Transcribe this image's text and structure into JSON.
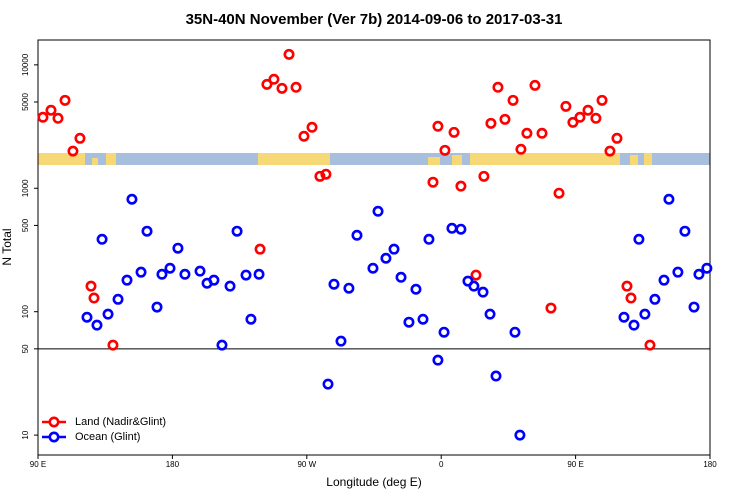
{
  "chart_data": {
    "type": "scatter",
    "title": "35N-40N November (Ver 7b)   2014-09-06 to 2017-03-31",
    "xlabel": "Longitude (deg E)",
    "ylabel": "N Total",
    "xlim": [
      90,
      540
    ],
    "xticks": [
      {
        "value": 90,
        "label": "90 E"
      },
      180,
      {
        "value": 270,
        "label": "90 W"
      },
      {
        "value": 360,
        "label": "0"
      },
      {
        "value": 450,
        "label": "90 E"
      },
      {
        "value": 540,
        "label": "180"
      }
    ],
    "ylim": [
      6.9,
      15900
    ],
    "log_y": true,
    "yticks": [
      10,
      50,
      100,
      500,
      1000,
      5000,
      10000
    ],
    "reference_line": 50,
    "legend": "bottom-left",
    "series": [
      {
        "name": "Land (Nadir&Glint)",
        "color": "#ff0000",
        "x": [
          93.3,
          98.7,
          103.4,
          108.1,
          113.4,
          118.1,
          125.5,
          127.5,
          140.2,
          238.7,
          243.3,
          248.0,
          253.4,
          258.1,
          262.8,
          268.1,
          273.5,
          278.8,
          282.8,
          354.5,
          357.8,
          362.5,
          368.6,
          373.2,
          383.3,
          388.6,
          393.3,
          398.0,
          402.7,
          408.1,
          413.4,
          417.4,
          422.8,
          427.5,
          433.5,
          438.9,
          443.5,
          448.2,
          452.9,
          458.3,
          463.6,
          467.7,
          473.0,
          477.7,
          484.4,
          487.1,
          499.8
        ],
        "values": [
          3760,
          4290,
          3690,
          5160,
          2000,
          2540,
          161,
          129,
          53.6,
          321,
          6950,
          7640,
          6450,
          12160,
          6580,
          2640,
          3120,
          1250,
          1300,
          1120,
          3180,
          2030,
          2840,
          1040,
          198,
          1250,
          3360,
          6580,
          3620,
          5160,
          2070,
          2790,
          6820,
          2790,
          107,
          912,
          4610,
          3420,
          3760,
          4290,
          3690,
          5160,
          2000,
          2540,
          161,
          129,
          53.6
        ]
      },
      {
        "name": "Ocean (Glint)",
        "color": "#0000ff",
        "x": [
          122.8,
          129.5,
          132.9,
          136.9,
          143.6,
          149.6,
          152.9,
          159.0,
          163.0,
          169.7,
          173.0,
          178.4,
          183.7,
          188.4,
          198.5,
          203.2,
          207.8,
          213.2,
          218.6,
          223.3,
          229.3,
          232.6,
          238.0,
          284.2,
          288.2,
          292.9,
          298.2,
          303.6,
          314.3,
          317.7,
          323.0,
          328.4,
          333.1,
          338.4,
          343.1,
          347.8,
          351.8,
          357.8,
          361.9,
          367.2,
          373.2,
          377.9,
          381.9,
          388.0,
          392.7,
          396.7,
          409.4,
          412.7,
          482.4,
          489.1,
          492.4,
          496.4,
          503.1,
          509.2,
          512.5,
          518.5,
          523.2,
          529.3,
          532.6,
          537.9
        ],
        "values": [
          90.2,
          77.8,
          386,
          95.5,
          126,
          180,
          815,
          209,
          449,
          109,
          201,
          225,
          327,
          201,
          213,
          170,
          180,
          53.6,
          161,
          449,
          198,
          86.9,
          201,
          25.9,
          167,
          57.7,
          155,
          416,
          225,
          651,
          271,
          321,
          190,
          82.2,
          152,
          86.9,
          386,
          40.5,
          68.2,
          474,
          466,
          177,
          161,
          144,
          95.5,
          30.1,
          68.2,
          10,
          90.2,
          77.8,
          386,
          95.5,
          126,
          180,
          815,
          209,
          449,
          109,
          201,
          225
        ]
      }
    ]
  }
}
